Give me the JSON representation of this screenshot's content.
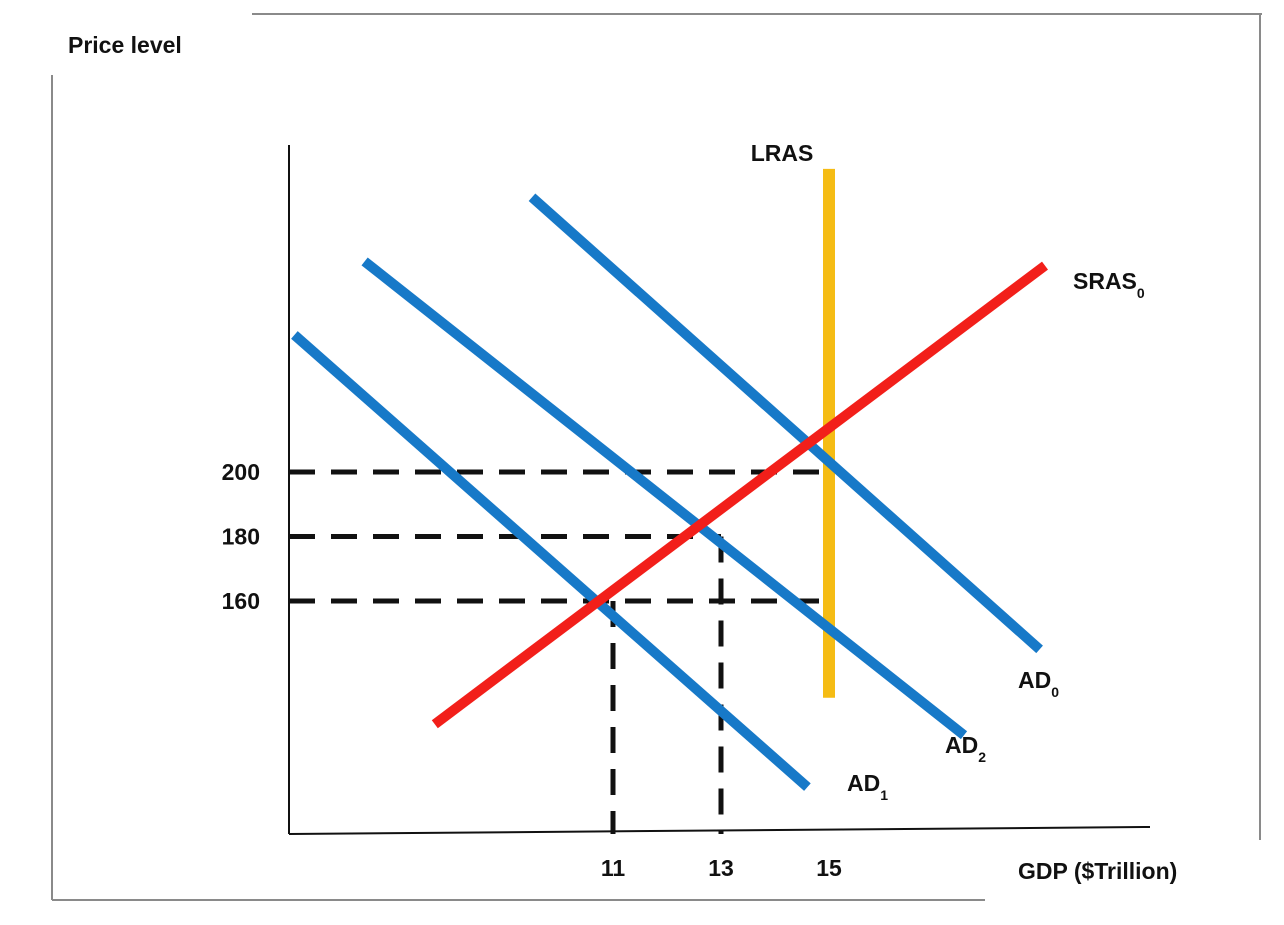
{
  "chart_data": {
    "type": "line",
    "ylabel": "Price level",
    "xlabel": "GDP ($Trillion)",
    "x_ticks": [
      {
        "value": 11,
        "label": "11"
      },
      {
        "value": 13,
        "label": "13"
      },
      {
        "value": 15,
        "label": "15"
      }
    ],
    "y_ticks": [
      {
        "value": 200,
        "label": "200"
      },
      {
        "value": 180,
        "label": "180"
      },
      {
        "value": 160,
        "label": "160"
      }
    ],
    "series": [
      {
        "key": "lras",
        "label": "LRAS",
        "sub": "",
        "color": "#F5BC14",
        "points": [
          [
            15,
            130
          ],
          [
            15,
            294
          ]
        ]
      },
      {
        "key": "sras0",
        "label": "SRAS",
        "sub": "0",
        "color": "#F21F1A",
        "points": [
          [
            7.7,
            121.8
          ],
          [
            19.0,
            264.0
          ]
        ]
      },
      {
        "key": "ad0",
        "label": "AD",
        "sub": "0",
        "color": "#1779C8",
        "points": [
          [
            9.5,
            285.2
          ],
          [
            18.9,
            145.0
          ]
        ]
      },
      {
        "key": "ad2",
        "label": "AD",
        "sub": "2",
        "color": "#1779C8",
        "points": [
          [
            6.4,
            265.3
          ],
          [
            17.5,
            118.4
          ]
        ]
      },
      {
        "key": "ad1",
        "label": "AD",
        "sub": "1",
        "color": "#1779C8",
        "points": [
          [
            5.1,
            242.5
          ],
          [
            14.6,
            102.3
          ]
        ]
      }
    ],
    "reference_lines": [
      {
        "type": "h",
        "y": 200,
        "x_to": 15
      },
      {
        "type": "h",
        "y": 180,
        "x_to": 13
      },
      {
        "type": "h",
        "y": 160,
        "x_to": 15
      },
      {
        "type": "v",
        "x": 11,
        "y_to": 160
      },
      {
        "type": "v",
        "x": 13,
        "y_to": 180
      }
    ]
  }
}
